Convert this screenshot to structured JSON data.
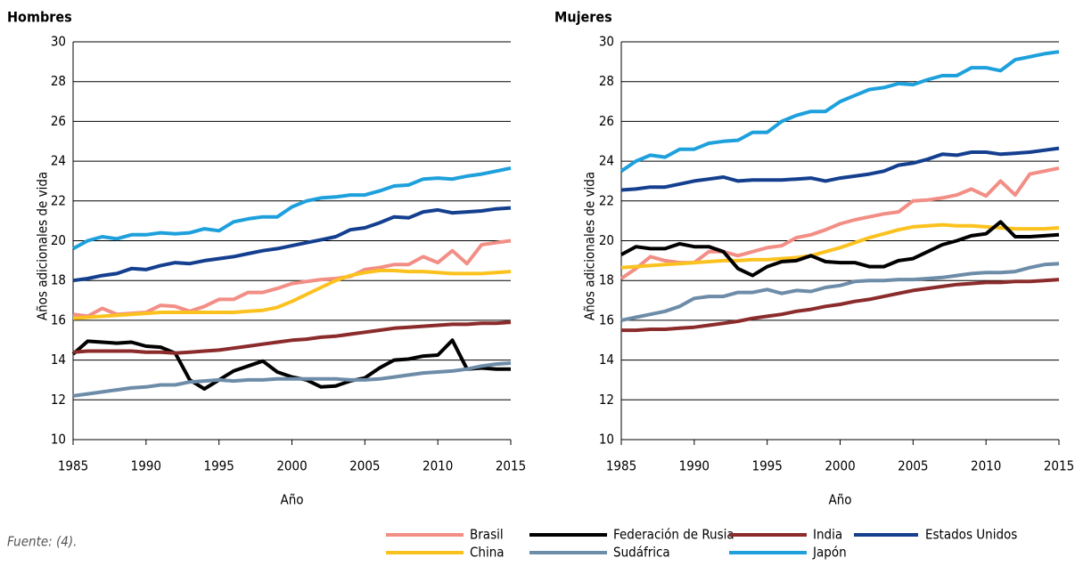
{
  "source": "Fuente: (4).",
  "chart_data": [
    {
      "type": "line",
      "title": "Hombres",
      "xlabel": "Año",
      "ylabel": "Años adicionales de vida",
      "x": [
        1985,
        1986,
        1987,
        1988,
        1989,
        1990,
        1991,
        1992,
        1993,
        1994,
        1995,
        1996,
        1997,
        1998,
        1999,
        2000,
        2001,
        2002,
        2003,
        2004,
        2005,
        2006,
        2007,
        2008,
        2009,
        2010,
        2011,
        2012,
        2013,
        2014,
        2015
      ],
      "xlim": [
        1985,
        2015
      ],
      "xticks": [
        1985,
        1990,
        1995,
        2000,
        2005,
        2010,
        2015
      ],
      "ylim": [
        10,
        30
      ],
      "yticks": [
        10,
        12,
        14,
        16,
        18,
        20,
        22,
        24,
        26,
        28,
        30
      ],
      "grid": true,
      "series": [
        {
          "name": "Brasil",
          "color": "#f28e85",
          "values": [
            16.3,
            16.2,
            16.6,
            16.3,
            16.35,
            16.4,
            16.75,
            16.7,
            16.45,
            16.7,
            17.05,
            17.05,
            17.4,
            17.4,
            17.6,
            17.85,
            17.95,
            18.05,
            18.1,
            18.2,
            18.55,
            18.65,
            18.8,
            18.8,
            19.2,
            18.9,
            19.5,
            18.85,
            19.8,
            19.9,
            20.0
          ]
        },
        {
          "name": "China",
          "color": "#fbc21f",
          "values": [
            16.1,
            16.15,
            16.2,
            16.25,
            16.3,
            16.35,
            16.4,
            16.4,
            16.4,
            16.4,
            16.4,
            16.4,
            16.45,
            16.5,
            16.65,
            16.95,
            17.3,
            17.65,
            18.0,
            18.25,
            18.4,
            18.5,
            18.5,
            18.45,
            18.45,
            18.4,
            18.35,
            18.35,
            18.35,
            18.4,
            18.45
          ]
        },
        {
          "name": "Federación de Rusia",
          "color": "#000000",
          "values": [
            14.3,
            14.95,
            14.9,
            14.85,
            14.9,
            14.7,
            14.65,
            14.35,
            13.0,
            12.55,
            13.0,
            13.45,
            13.7,
            13.95,
            13.4,
            13.15,
            13.0,
            12.65,
            12.7,
            12.95,
            13.1,
            13.6,
            14.0,
            14.05,
            14.2,
            14.25,
            15.0,
            13.55,
            13.6,
            13.55,
            13.55
          ]
        },
        {
          "name": "Sudáfrica",
          "color": "#6d8ca8",
          "values": [
            12.2,
            12.3,
            12.4,
            12.5,
            12.6,
            12.65,
            12.75,
            12.75,
            12.9,
            12.95,
            13.0,
            12.95,
            13.0,
            13.0,
            13.05,
            13.05,
            13.05,
            13.05,
            13.05,
            13.0,
            13.0,
            13.05,
            13.15,
            13.25,
            13.35,
            13.4,
            13.45,
            13.55,
            13.7,
            13.8,
            13.85
          ]
        },
        {
          "name": "India",
          "color": "#8b2b2b",
          "values": [
            14.4,
            14.45,
            14.45,
            14.45,
            14.45,
            14.4,
            14.4,
            14.35,
            14.4,
            14.45,
            14.5,
            14.6,
            14.7,
            14.8,
            14.9,
            15.0,
            15.05,
            15.15,
            15.2,
            15.3,
            15.4,
            15.5,
            15.6,
            15.65,
            15.7,
            15.75,
            15.8,
            15.8,
            15.85,
            15.85,
            15.9
          ]
        },
        {
          "name": "Japón",
          "color": "#1ea0dc",
          "values": [
            19.6,
            20.0,
            20.2,
            20.1,
            20.3,
            20.3,
            20.4,
            20.35,
            20.4,
            20.6,
            20.5,
            20.95,
            21.1,
            21.2,
            21.2,
            21.7,
            22.0,
            22.15,
            22.2,
            22.3,
            22.3,
            22.5,
            22.75,
            22.8,
            23.1,
            23.15,
            23.1,
            23.25,
            23.35,
            23.5,
            23.65
          ]
        },
        {
          "name": "Estados Unidos",
          "color": "#143f8f",
          "values": [
            18.0,
            18.1,
            18.25,
            18.35,
            18.6,
            18.55,
            18.75,
            18.9,
            18.85,
            19.0,
            19.1,
            19.2,
            19.35,
            19.5,
            19.6,
            19.75,
            19.9,
            20.05,
            20.2,
            20.55,
            20.65,
            20.9,
            21.2,
            21.15,
            21.45,
            21.55,
            21.4,
            21.45,
            21.5,
            21.6,
            21.65
          ]
        }
      ]
    },
    {
      "type": "line",
      "title": "Mujeres",
      "xlabel": "Año",
      "ylabel": "Años adicionales de vida",
      "x": [
        1985,
        1986,
        1987,
        1988,
        1989,
        1990,
        1991,
        1992,
        1993,
        1994,
        1995,
        1996,
        1997,
        1998,
        1999,
        2000,
        2001,
        2002,
        2003,
        2004,
        2005,
        2006,
        2007,
        2008,
        2009,
        2010,
        2011,
        2012,
        2013,
        2014,
        2015
      ],
      "xlim": [
        1985,
        2015
      ],
      "xticks": [
        1985,
        1990,
        1995,
        2000,
        2005,
        2010,
        2015
      ],
      "ylim": [
        10,
        30
      ],
      "yticks": [
        10,
        12,
        14,
        16,
        18,
        20,
        22,
        24,
        26,
        28,
        30
      ],
      "grid": true,
      "series": [
        {
          "color": "#f28e85",
          "values": [
            18.1,
            18.6,
            19.2,
            19.0,
            18.9,
            18.9,
            19.45,
            19.45,
            19.25,
            19.45,
            19.65,
            19.75,
            20.15,
            20.3,
            20.55,
            20.85,
            21.05,
            21.2,
            21.35,
            21.45,
            22.0,
            22.05,
            22.15,
            22.3,
            22.6,
            22.25,
            23.0,
            22.3,
            23.35,
            23.5,
            23.65
          ]
        },
        {
          "color": "#fbc21f",
          "values": [
            18.65,
            18.7,
            18.75,
            18.8,
            18.85,
            18.9,
            18.95,
            19.0,
            19.0,
            19.05,
            19.05,
            19.1,
            19.15,
            19.25,
            19.45,
            19.65,
            19.9,
            20.15,
            20.35,
            20.55,
            20.7,
            20.75,
            20.8,
            20.75,
            20.75,
            20.7,
            20.65,
            20.6,
            20.6,
            20.6,
            20.65
          ]
        },
        {
          "color": "#000000",
          "values": [
            19.3,
            19.7,
            19.6,
            19.6,
            19.85,
            19.7,
            19.7,
            19.45,
            18.6,
            18.25,
            18.7,
            18.95,
            19.0,
            19.25,
            18.95,
            18.9,
            18.9,
            18.7,
            18.7,
            19.0,
            19.1,
            19.45,
            19.8,
            20.0,
            20.25,
            20.35,
            20.95,
            20.2,
            20.2,
            20.25,
            20.3
          ]
        },
        {
          "color": "#6d8ca8",
          "values": [
            16.0,
            16.15,
            16.3,
            16.45,
            16.7,
            17.1,
            17.2,
            17.2,
            17.4,
            17.4,
            17.55,
            17.35,
            17.5,
            17.45,
            17.65,
            17.75,
            17.95,
            18.0,
            18.0,
            18.05,
            18.05,
            18.1,
            18.15,
            18.25,
            18.35,
            18.4,
            18.4,
            18.45,
            18.65,
            18.8,
            18.85
          ]
        },
        {
          "color": "#8b2b2b",
          "values": [
            15.5,
            15.5,
            15.55,
            15.55,
            15.6,
            15.65,
            15.75,
            15.85,
            15.95,
            16.1,
            16.2,
            16.3,
            16.45,
            16.55,
            16.7,
            16.8,
            16.95,
            17.05,
            17.2,
            17.35,
            17.5,
            17.6,
            17.7,
            17.8,
            17.85,
            17.9,
            17.9,
            17.95,
            17.95,
            18.0,
            18.05
          ]
        },
        {
          "color": "#1ea0dc",
          "values": [
            23.5,
            24.0,
            24.3,
            24.2,
            24.6,
            24.6,
            24.9,
            25.0,
            25.05,
            25.45,
            25.45,
            26.0,
            26.3,
            26.5,
            26.5,
            27.0,
            27.3,
            27.6,
            27.7,
            27.9,
            27.85,
            28.1,
            28.3,
            28.3,
            28.7,
            28.7,
            28.55,
            29.1,
            29.25,
            29.4,
            29.5
          ]
        },
        {
          "color": "#143f8f",
          "values": [
            22.55,
            22.6,
            22.7,
            22.7,
            22.85,
            23.0,
            23.1,
            23.2,
            23.0,
            23.05,
            23.05,
            23.05,
            23.1,
            23.15,
            23.0,
            23.15,
            23.25,
            23.35,
            23.5,
            23.8,
            23.9,
            24.1,
            24.35,
            24.3,
            24.45,
            24.45,
            24.35,
            24.4,
            24.45,
            24.55,
            24.65
          ]
        }
      ]
    }
  ]
}
